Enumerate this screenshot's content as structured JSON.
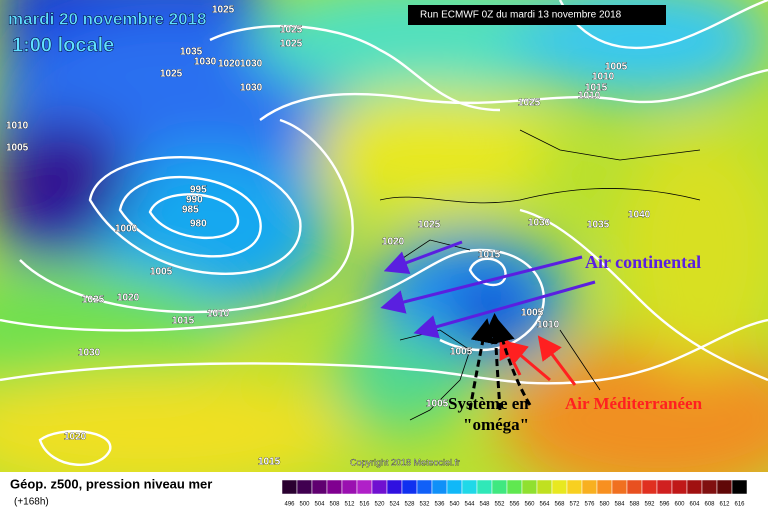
{
  "header": {
    "date": "mardi 20 novembre 2018",
    "time": "1:00 locale",
    "run": "Run ECMWF 0Z du mardi 13 novembre 2018"
  },
  "map": {
    "isobar_labels": [
      "1025",
      "1025",
      "1025",
      "1035",
      "1030",
      "1025",
      "1020",
      "1030",
      "1030",
      "1005",
      "1010",
      "1015",
      "1010",
      "1025",
      "1010",
      "1005",
      "995",
      "990",
      "985",
      "980",
      "1000",
      "1005",
      "1025",
      "1020",
      "1015",
      "1010",
      "1030",
      "1020",
      "1025",
      "1015",
      "1030",
      "1035",
      "1040",
      "1005",
      "1010",
      "1005",
      "1005",
      "1020",
      "1015"
    ]
  },
  "annotations": {
    "continental": "Air continental",
    "mediterranean": "Air Méditerranéen",
    "system_line1": "Système en",
    "system_line2": "\"oméga\""
  },
  "footer": {
    "copyright": "Copyright 2018 Meteociel.fr",
    "legend_title": "Géop. z500, pression niveau mer",
    "lead": "(+168h)"
  },
  "legend": {
    "scale": [
      496,
      500,
      504,
      508,
      512,
      516,
      520,
      524,
      528,
      532,
      536,
      540,
      544,
      548,
      552,
      556,
      560,
      564,
      568,
      572,
      576,
      580,
      584,
      588,
      592,
      596,
      600,
      604,
      608,
      612,
      616
    ]
  }
}
